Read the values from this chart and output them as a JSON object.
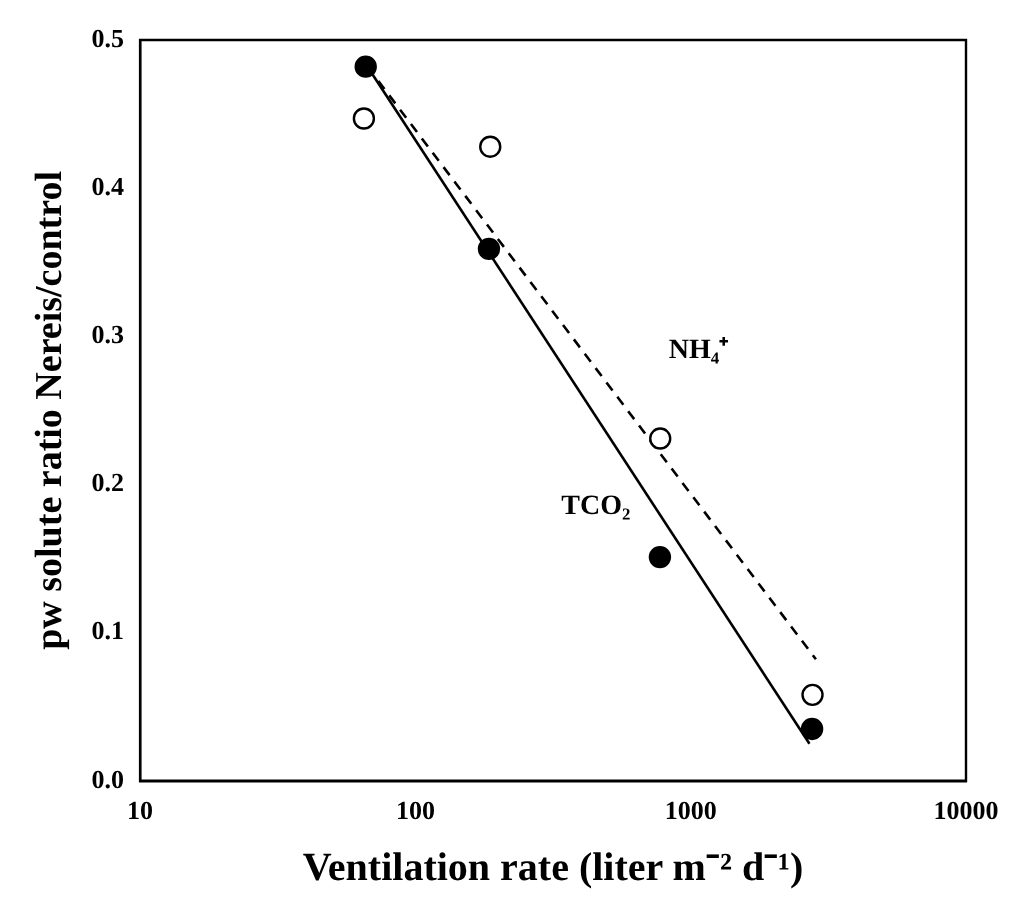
{
  "chart_data": {
    "type": "scatter",
    "xlabel": "Ventilation rate (liter m⁻² d⁻¹)",
    "ylabel": "pw solute ratio Nereis/control",
    "log": "x",
    "xlim": [
      10,
      10000
    ],
    "xticks": [
      10,
      100,
      1000,
      10000
    ],
    "ylim": [
      0,
      0.5
    ],
    "yticks": [
      {
        "value": 0,
        "label": "0.0"
      },
      0.1,
      0.2,
      0.3,
      0.4,
      0.5
    ],
    "grid": false,
    "legend": false,
    "series": [
      {
        "marker": "circle",
        "color": "#000000",
        "x": [
          66,
          185,
          773,
          2760
        ],
        "values": [
          0.482,
          0.359,
          0.151,
          0.035
        ]
      },
      {
        "marker": "circle",
        "color": "#000000",
        "x": [
          65,
          187,
          775,
          2770
        ],
        "values": [
          0.447,
          0.428,
          0.231,
          0.058
        ]
      },
      {
        "type": "line",
        "line_style": "solid",
        "marker": "none",
        "color": "#000000",
        "x": [
          67,
          2700
        ],
        "values": [
          0.482,
          0.025
        ]
      },
      {
        "type": "line",
        "line_style": "dashed",
        "marker": "none",
        "color": "#000000",
        "x": [
          67,
          2850
        ],
        "values": [
          0.482,
          0.082
        ]
      }
    ],
    "annotations": [
      "NH₄⁺",
      "TCO₂"
    ]
  }
}
